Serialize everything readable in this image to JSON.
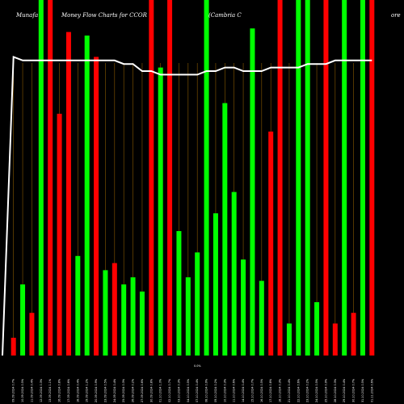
{
  "chart_data": {
    "type": "bar",
    "title_left": "Munafa",
    "title_main": "Money Flow  Charts for CCOR",
    "title_right": "(Cambria  C",
    "title_far_right": "ore",
    "x_mid_label": "0.0%",
    "x_tick_labels": [
      "09.09.2024 0.7%",
      "10.09.2024 0.5%",
      "11.09.2024 0.4%",
      "12.09.2024 0.3%",
      "13.09.2024 1.1%",
      "16.09.2024 0.8%",
      "17.09.2024 0.6%",
      "18.09.2024 0.4%",
      "19.09.2024 1.2%",
      "20.09.2024 0.9%",
      "23.09.2024 0.5%",
      "24.09.2024 0.4%",
      "25.09.2024 0.3%",
      "26.09.2024 0.2%",
      "27.09.2024 0.6%",
      "30.09.2024 0.8%",
      "01.10.2024 1.0%",
      "02.10.2024 0.7%",
      "03.10.2024 0.3%",
      "04.10.2024 0.5%",
      "07.10.2024 0.4%",
      "08.10.2024 0.9%",
      "09.10.2024 0.2%",
      "10.10.2024 0.3%",
      "11.10.2024 0.6%",
      "14.10.2024 0.4%",
      "15.10.2024 0.7%",
      "16.10.2024 0.5%",
      "17.10.2024 0.8%",
      "18.10.2024 0.3%",
      "21.10.2024 0.4%",
      "22.10.2024 0.6%",
      "23.10.2024 0.2%",
      "24.10.2024 0.5%",
      "25.10.2024 0.9%",
      "28.10.2024 0.3%",
      "29.10.2024 0.4%",
      "30.10.2024 0.7%",
      "31.10.2024 0.5%",
      "01.11.2024 0.6%"
    ],
    "values": [
      5,
      20,
      12,
      100,
      100,
      68,
      91,
      28,
      90,
      84,
      24,
      26,
      20,
      22,
      18,
      100,
      81,
      100,
      35,
      22,
      29,
      100,
      40,
      71,
      46,
      27,
      92,
      21,
      63,
      100,
      9,
      100,
      100,
      15,
      100,
      9,
      100,
      12,
      100,
      100
    ],
    "colors": [
      "red",
      "green",
      "red",
      "green",
      "red",
      "red",
      "red",
      "green",
      "green",
      "red",
      "green",
      "red",
      "green",
      "green",
      "green",
      "red",
      "green",
      "red",
      "green",
      "green",
      "green",
      "green",
      "green",
      "green",
      "green",
      "green",
      "green",
      "green",
      "red",
      "red",
      "green",
      "green",
      "green",
      "green",
      "red",
      "red",
      "green",
      "red",
      "green",
      "red"
    ],
    "ylim": [
      0,
      100
    ],
    "line": {
      "name": "",
      "values": [
        84,
        83,
        83,
        83,
        83,
        83,
        83,
        83,
        83,
        83,
        83,
        83,
        82,
        82,
        80,
        80,
        79,
        79,
        79,
        79,
        79,
        80,
        80,
        81,
        81,
        80,
        80,
        80,
        81,
        81,
        81,
        81,
        82,
        82,
        82,
        83,
        83,
        83,
        83,
        83
      ],
      "start_value": 0
    },
    "grid": "vertical",
    "colors_hex": {
      "red": "#ff0000",
      "green": "#00ff00",
      "line": "#ffffff",
      "grid": "#8a5a00"
    }
  }
}
